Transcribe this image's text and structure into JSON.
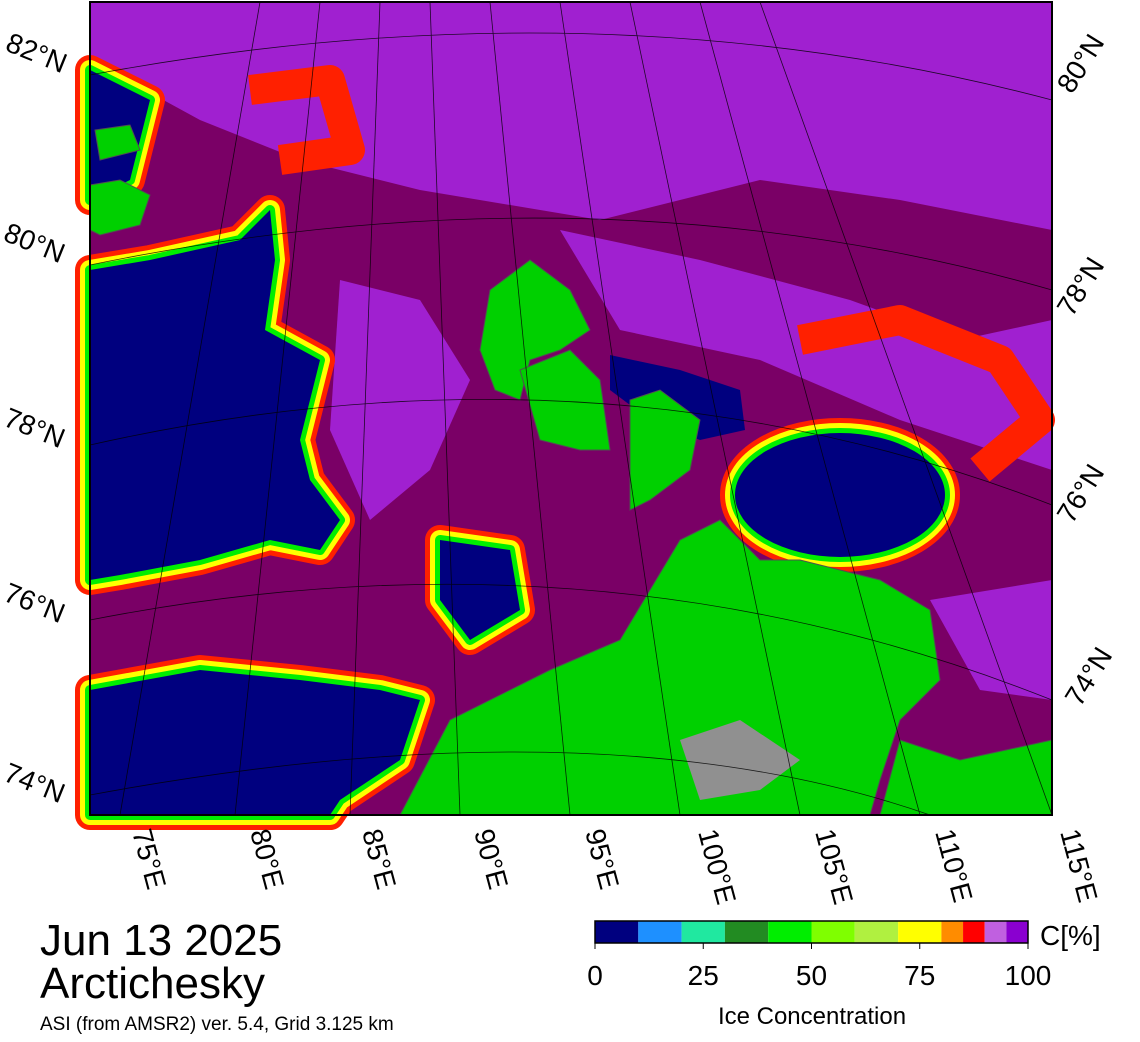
{
  "map": {
    "date": "Jun 13 2025",
    "region": "Arctichesky",
    "source": "ASI (from AMSR2) ver. 5.4,  Grid 3.125 km",
    "lat_labels_left": [
      "82°N",
      "80°N",
      "78°N",
      "76°N",
      "74°N"
    ],
    "lat_labels_right": [
      "80°N",
      "78°N",
      "76°N",
      "74°N"
    ],
    "lon_labels": [
      "75°E",
      "80°E",
      "85°E",
      "90°E",
      "95°E",
      "100°E",
      "105°E",
      "110°E",
      "115°E"
    ]
  },
  "colorbar": {
    "unit": "C[%]",
    "label": "Ice Concentration",
    "lim": [
      0,
      100
    ],
    "ticks": [
      0,
      25,
      50,
      75,
      100
    ],
    "bounds": [
      0,
      10,
      20,
      30,
      40,
      50,
      60,
      70,
      80,
      85,
      90,
      95,
      100
    ],
    "colors": [
      "#00007f",
      "#1e90ff",
      "#20e8a0",
      "#228b22",
      "#00ee00",
      "#7fff00",
      "#b0f040",
      "#ffff00",
      "#ff8c00",
      "#ff0000",
      "#c060e0",
      "#8a00d0"
    ]
  }
}
